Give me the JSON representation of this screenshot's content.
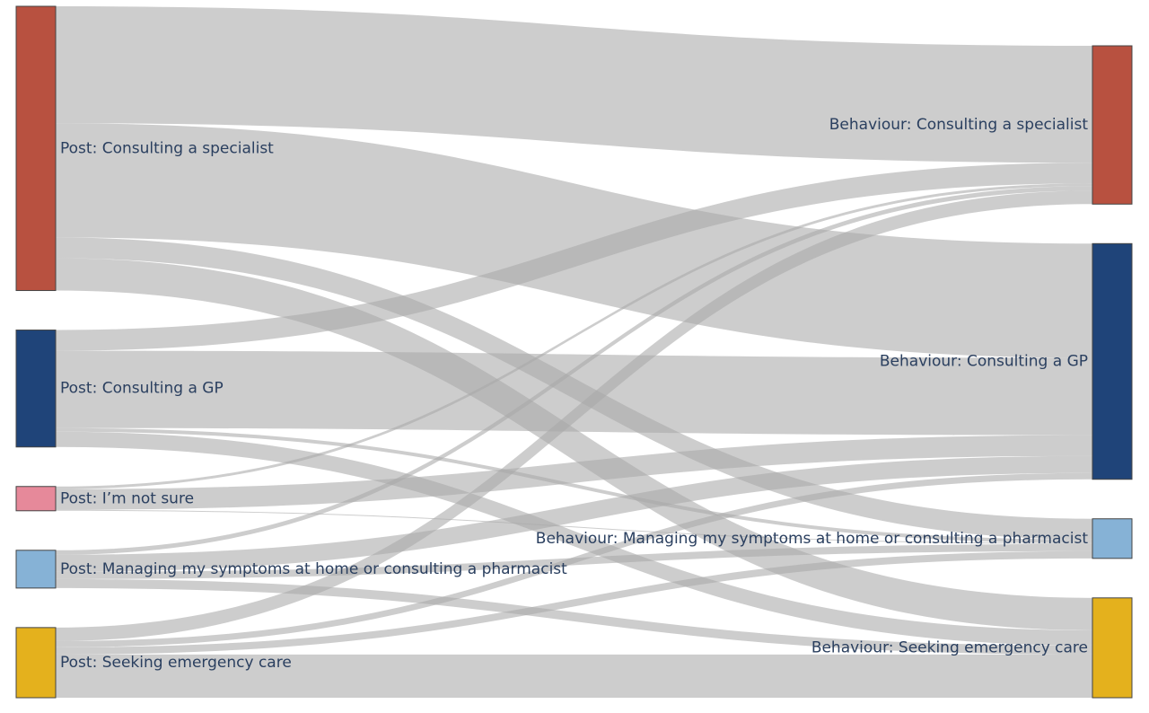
{
  "chart_data": {
    "type": "sankey",
    "title": "",
    "link_color": "#a8a8a8",
    "nodes": [
      {
        "id": "post_specialist",
        "side": "left",
        "label": "Post: Consulting a specialist",
        "color": "#b85140"
      },
      {
        "id": "post_gp",
        "side": "left",
        "label": "Post: Consulting a GP",
        "color": "#1f4479"
      },
      {
        "id": "post_notsure",
        "side": "left",
        "label": "Post: I’m not sure",
        "color": "#e6899a"
      },
      {
        "id": "post_home",
        "side": "left",
        "label": "Post: Managing my symptoms at home or consulting a pharmacist",
        "color": "#86b2d6"
      },
      {
        "id": "post_emergency",
        "side": "left",
        "label": "Post: Seeking emergency care",
        "color": "#e4b11d"
      },
      {
        "id": "beh_specialist",
        "side": "right",
        "label": "Behaviour: Consulting a specialist",
        "color": "#b85140"
      },
      {
        "id": "beh_gp",
        "side": "right",
        "label": "Behaviour: Consulting a GP",
        "color": "#1f4479"
      },
      {
        "id": "beh_home",
        "side": "right",
        "label": "Behaviour: Managing my symptoms at home or consulting a pharmacist",
        "color": "#86b2d6"
      },
      {
        "id": "beh_emergency",
        "side": "right",
        "label": "Behaviour: Seeking emergency care",
        "color": "#e4b11d"
      }
    ],
    "links": [
      {
        "source": "post_specialist",
        "target": "beh_specialist",
        "value": 130
      },
      {
        "source": "post_specialist",
        "target": "beh_gp",
        "value": 127
      },
      {
        "source": "post_specialist",
        "target": "beh_home",
        "value": 23
      },
      {
        "source": "post_specialist",
        "target": "beh_emergency",
        "value": 36
      },
      {
        "source": "post_gp",
        "target": "beh_specialist",
        "value": 23
      },
      {
        "source": "post_gp",
        "target": "beh_gp",
        "value": 86
      },
      {
        "source": "post_gp",
        "target": "beh_home",
        "value": 4
      },
      {
        "source": "post_gp",
        "target": "beh_emergency",
        "value": 17
      },
      {
        "source": "post_notsure",
        "target": "beh_specialist",
        "value": 3
      },
      {
        "source": "post_notsure",
        "target": "beh_gp",
        "value": 23
      },
      {
        "source": "post_notsure",
        "target": "beh_home",
        "value": 1
      },
      {
        "source": "post_home",
        "target": "beh_specialist",
        "value": 5
      },
      {
        "source": "post_home",
        "target": "beh_gp",
        "value": 19
      },
      {
        "source": "post_home",
        "target": "beh_home",
        "value": 8
      },
      {
        "source": "post_home",
        "target": "beh_emergency",
        "value": 10
      },
      {
        "source": "post_emergency",
        "target": "beh_specialist",
        "value": 15
      },
      {
        "source": "post_emergency",
        "target": "beh_gp",
        "value": 7
      },
      {
        "source": "post_emergency",
        "target": "beh_home",
        "value": 8
      },
      {
        "source": "post_emergency",
        "target": "beh_emergency",
        "value": 48
      }
    ]
  }
}
